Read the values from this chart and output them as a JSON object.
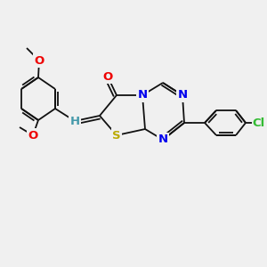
{
  "background_color": "#f0f0f0",
  "figsize": [
    3.0,
    3.0
  ],
  "dpi": 100,
  "bond_lw": 1.3,
  "bond_color": "#111111",
  "colors": {
    "O": "#ee0000",
    "N": "#0000ee",
    "S": "#bbaa00",
    "Cl": "#33bb33",
    "H": "#4499aa",
    "C": "#111111"
  }
}
